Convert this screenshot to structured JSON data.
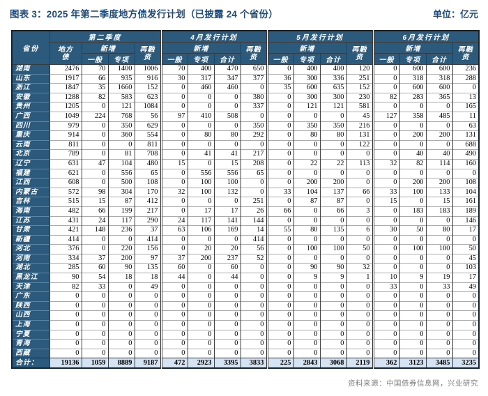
{
  "page": {
    "title": "图表 3：2025 年第二季度地方债发行计划（已披露 24 个省份）",
    "unit": "单位：亿元",
    "source": "资料来源：中国债券信息网，兴业研究"
  },
  "colors": {
    "title": "#1F4B7C",
    "header_bg": "#2B5A7D",
    "total_bg": "#D5E3F2",
    "source": "#808080"
  },
  "table": {
    "header": {
      "province": "省份",
      "quarter_group": "第二季度",
      "month_groups": [
        "4月发行计划",
        "5月发行计划",
        "6月发行计划"
      ],
      "local_bond_l1": "地方",
      "local_bond_l2": "债",
      "new_issue": "新增",
      "refinance_l1": "再融",
      "refinance_l2": "资",
      "general": "一般",
      "special": "专项",
      "subtotal": "合计"
    }
  },
  "chart_data": {
    "type": "table",
    "title": "2025 年第二季度地方债发行计划（已披露 24 个省份）",
    "unit": "亿元",
    "columns": [
      "省份",
      "第二季度地方债",
      "第二季度新增一般",
      "第二季度新增专项",
      "第二季度再融资",
      "4月新增一般",
      "4月新增专项",
      "4月新增合计",
      "4月再融资",
      "5月新增一般",
      "5月新增专项",
      "5月新增合计",
      "5月再融资",
      "6月新增一般",
      "6月新增专项",
      "6月新增合计",
      "6月再融资"
    ],
    "rows": [
      [
        "湖南",
        2476,
        70,
        1400,
        1006,
        70,
        400,
        470,
        650,
        0,
        400,
        400,
        120,
        0,
        600,
        600,
        236
      ],
      [
        "山东",
        1917,
        66,
        935,
        916,
        30,
        317,
        347,
        377,
        36,
        300,
        336,
        251,
        0,
        318,
        318,
        288
      ],
      [
        "浙江",
        1847,
        35,
        1660,
        152,
        0,
        460,
        460,
        0,
        35,
        600,
        635,
        152,
        0,
        600,
        600,
        0
      ],
      [
        "安徽",
        1288,
        82,
        583,
        623,
        0,
        0,
        0,
        380,
        0,
        300,
        300,
        230,
        82,
        283,
        365,
        13
      ],
      [
        "贵州",
        1205,
        0,
        121,
        1084,
        0,
        0,
        0,
        337,
        0,
        121,
        121,
        581,
        0,
        0,
        0,
        165
      ],
      [
        "广西",
        1049,
        224,
        768,
        56,
        97,
        410,
        508,
        0,
        0,
        0,
        0,
        45,
        127,
        358,
        485,
        11
      ],
      [
        "四川",
        979,
        0,
        350,
        629,
        0,
        0,
        0,
        350,
        0,
        350,
        350,
        216,
        0,
        0,
        0,
        63
      ],
      [
        "重庆",
        914,
        0,
        360,
        554,
        0,
        80,
        80,
        292,
        0,
        80,
        80,
        131,
        0,
        200,
        200,
        131
      ],
      [
        "云南",
        811,
        0,
        0,
        811,
        0,
        0,
        0,
        0,
        0,
        0,
        0,
        122,
        0,
        0,
        0,
        688
      ],
      [
        "北京",
        789,
        0,
        81,
        708,
        0,
        41,
        41,
        217,
        0,
        0,
        0,
        0,
        0,
        40,
        40,
        490
      ],
      [
        "辽宁",
        631,
        47,
        104,
        480,
        15,
        0,
        15,
        208,
        0,
        22,
        22,
        113,
        32,
        82,
        114,
        160
      ],
      [
        "福建",
        621,
        0,
        556,
        65,
        0,
        556,
        556,
        65,
        0,
        0,
        0,
        0,
        0,
        0,
        0,
        0
      ],
      [
        "江西",
        608,
        0,
        500,
        108,
        0,
        100,
        100,
        0,
        0,
        200,
        200,
        0,
        0,
        200,
        200,
        108
      ],
      [
        "内蒙古",
        572,
        98,
        304,
        170,
        32,
        100,
        132,
        0,
        33,
        104,
        137,
        66,
        33,
        100,
        133,
        104
      ],
      [
        "吉林",
        515,
        15,
        87,
        412,
        0,
        0,
        0,
        251,
        0,
        87,
        87,
        0,
        15,
        0,
        15,
        161
      ],
      [
        "海南",
        482,
        66,
        199,
        217,
        0,
        17,
        17,
        26,
        66,
        0,
        66,
        3,
        0,
        183,
        183,
        189
      ],
      [
        "江苏",
        431,
        24,
        117,
        290,
        24,
        117,
        141,
        144,
        0,
        0,
        0,
        0,
        0,
        0,
        0,
        146
      ],
      [
        "甘肃",
        421,
        148,
        236,
        37,
        63,
        106,
        169,
        14,
        55,
        80,
        135,
        6,
        30,
        50,
        80,
        17
      ],
      [
        "新疆",
        414,
        0,
        0,
        414,
        0,
        0,
        0,
        414,
        0,
        0,
        0,
        0,
        0,
        0,
        0,
        0
      ],
      [
        "河北",
        376,
        0,
        220,
        156,
        0,
        20,
        20,
        56,
        0,
        100,
        100,
        50,
        0,
        100,
        100,
        50
      ],
      [
        "河南",
        334,
        37,
        200,
        97,
        37,
        200,
        237,
        52,
        0,
        0,
        0,
        0,
        0,
        0,
        0,
        45
      ],
      [
        "湖北",
        285,
        60,
        90,
        135,
        60,
        0,
        60,
        0,
        0,
        90,
        90,
        32,
        0,
        0,
        0,
        103
      ],
      [
        "黑龙江",
        90,
        54,
        18,
        18,
        44,
        0,
        44,
        0,
        0,
        9,
        9,
        1,
        10,
        9,
        19,
        17
      ],
      [
        "天津",
        82,
        33,
        0,
        49,
        0,
        0,
        0,
        0,
        0,
        0,
        0,
        0,
        33,
        0,
        33,
        49
      ],
      [
        "广东",
        0,
        0,
        0,
        0,
        0,
        0,
        0,
        0,
        0,
        0,
        0,
        0,
        0,
        0,
        0,
        0
      ],
      [
        "陕西",
        0,
        0,
        0,
        0,
        0,
        0,
        0,
        0,
        0,
        0,
        0,
        0,
        0,
        0,
        0,
        0
      ],
      [
        "山西",
        0,
        0,
        0,
        0,
        0,
        0,
        0,
        0,
        0,
        0,
        0,
        0,
        0,
        0,
        0,
        0
      ],
      [
        "上海",
        0,
        0,
        0,
        0,
        0,
        0,
        0,
        0,
        0,
        0,
        0,
        0,
        0,
        0,
        0,
        0
      ],
      [
        "宁夏",
        0,
        0,
        0,
        0,
        0,
        0,
        0,
        0,
        0,
        0,
        0,
        0,
        0,
        0,
        0,
        0
      ],
      [
        "青海",
        0,
        0,
        0,
        0,
        0,
        0,
        0,
        0,
        0,
        0,
        0,
        0,
        0,
        0,
        0,
        0
      ],
      [
        "西藏",
        0,
        0,
        0,
        0,
        0,
        0,
        0,
        0,
        0,
        0,
        0,
        0,
        0,
        0,
        0,
        0
      ]
    ],
    "total_label": "合计：",
    "total": [
      19136,
      1059,
      8889,
      9187,
      472,
      2923,
      3395,
      3833,
      225,
      2843,
      3068,
      2119,
      362,
      3123,
      3485,
      3235
    ]
  }
}
